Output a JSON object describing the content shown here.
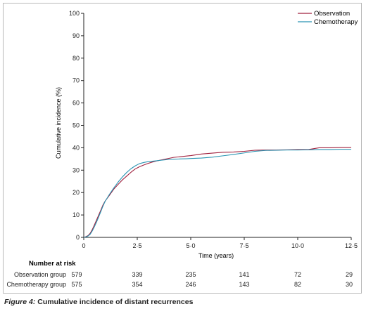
{
  "caption": {
    "label": "Figure 4:",
    "text": "Cumulative incidence of distant recurrences"
  },
  "colors": {
    "observation": "#a0213e",
    "chemotherapy": "#2b95b3",
    "axis": "#222222"
  },
  "chart_data": {
    "type": "line",
    "title": "",
    "xlabel": "Time (years)",
    "ylabel": "Cumulative incidence (%)",
    "xlim": [
      0,
      12.5
    ],
    "ylim": [
      0,
      100
    ],
    "x_ticks": [
      0,
      2.5,
      5.0,
      7.5,
      10.0,
      12.5
    ],
    "x_tick_labels": [
      "0",
      "2·5",
      "5·0",
      "7·5",
      "10·0",
      "12·5"
    ],
    "y_ticks": [
      0,
      10,
      20,
      30,
      40,
      50,
      60,
      70,
      80,
      90,
      100
    ],
    "y_tick_labels": [
      "0",
      "10",
      "20",
      "30",
      "40",
      "50",
      "60",
      "70",
      "80",
      "90",
      "100"
    ],
    "grid": false,
    "legend_position": "top-right",
    "series": [
      {
        "name": "Observation",
        "color": "#a0213e",
        "x": [
          0,
          0.1,
          0.2,
          0.3,
          0.4,
          0.5,
          0.6,
          0.7,
          0.8,
          0.9,
          1.0,
          1.2,
          1.4,
          1.6,
          1.8,
          2.0,
          2.2,
          2.4,
          2.6,
          2.8,
          3.0,
          3.2,
          3.4,
          3.6,
          3.8,
          4.0,
          4.2,
          4.5,
          4.8,
          5.0,
          5.5,
          6.0,
          6.5,
          7.0,
          7.5,
          8.0,
          8.5,
          9.0,
          9.5,
          10.0,
          10.5,
          11.0,
          11.5,
          12.0,
          12.5
        ],
        "y": [
          0,
          0.3,
          0.8,
          1.8,
          3.5,
          5.6,
          7.8,
          10.0,
          12.2,
          14.5,
          16.2,
          18.8,
          21.5,
          23.6,
          25.6,
          27.3,
          29.0,
          30.5,
          31.5,
          32.3,
          33.0,
          33.6,
          34.1,
          34.5,
          34.9,
          35.3,
          35.7,
          36.0,
          36.3,
          36.5,
          37.2,
          37.6,
          38.0,
          38.1,
          38.4,
          38.9,
          39.0,
          39.0,
          39.1,
          39.2,
          39.2,
          40.0,
          40.0,
          40.1,
          40.1
        ]
      },
      {
        "name": "Chemotherapy",
        "color": "#2b95b3",
        "x": [
          0,
          0.1,
          0.2,
          0.3,
          0.4,
          0.5,
          0.6,
          0.7,
          0.8,
          0.9,
          1.0,
          1.2,
          1.4,
          1.6,
          1.8,
          2.0,
          2.2,
          2.4,
          2.6,
          2.8,
          3.0,
          3.2,
          3.4,
          3.6,
          3.8,
          4.0,
          4.2,
          4.5,
          4.8,
          5.0,
          5.5,
          6.0,
          6.5,
          7.0,
          7.5,
          8.0,
          8.5,
          9.0,
          9.5,
          10.0,
          10.5,
          11.0,
          11.5,
          12.0,
          12.5
        ],
        "y": [
          0,
          0.2,
          0.6,
          1.4,
          2.9,
          4.8,
          6.9,
          9.2,
          11.6,
          14.0,
          16.1,
          19.2,
          22.0,
          24.6,
          26.9,
          28.9,
          30.6,
          31.9,
          32.9,
          33.4,
          33.8,
          34.0,
          34.2,
          34.4,
          34.6,
          34.8,
          34.9,
          35.0,
          35.1,
          35.2,
          35.4,
          35.8,
          36.4,
          37.0,
          37.7,
          38.4,
          38.8,
          38.9,
          39.0,
          39.0,
          39.1,
          39.2,
          39.2,
          39.3,
          39.3
        ]
      }
    ],
    "risk_table": {
      "title": "Number at risk",
      "rows": [
        {
          "label": "Observation group",
          "values": [
            "579",
            "339",
            "235",
            "141",
            "72",
            "29"
          ]
        },
        {
          "label": "Chemotherapy group",
          "values": [
            "575",
            "354",
            "246",
            "143",
            "82",
            "30"
          ]
        }
      ]
    }
  }
}
